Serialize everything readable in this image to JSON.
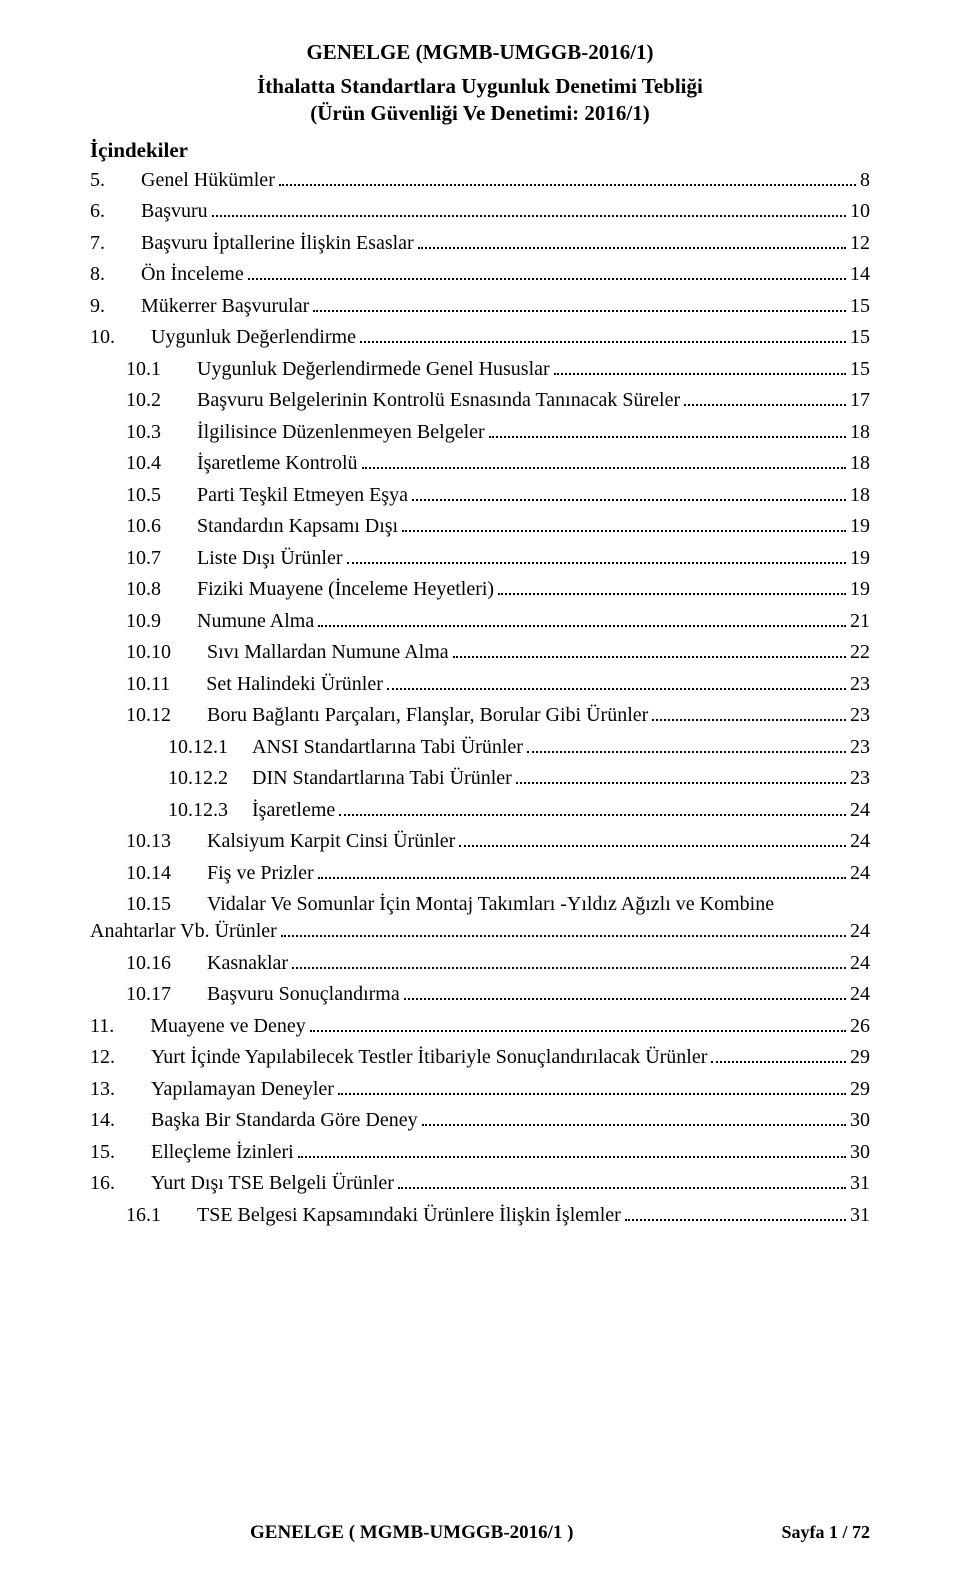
{
  "header": {
    "title1": "GENELGE (MGMB-UMGGB-2016/1)",
    "title2_line1": "İthalatta Standartlara Uygunluk Denetimi Tebliği",
    "title2_line2": "(Ürün Güvenliği Ve Denetimi: 2016/1)"
  },
  "contents_label": "İçindekiler",
  "toc": [
    {
      "num": "5.",
      "text": "Genel Hükümler",
      "page": "8",
      "indent": 0
    },
    {
      "num": "6.",
      "text": "Başvuru",
      "page": "10",
      "indent": 0
    },
    {
      "num": "7.",
      "text": "Başvuru İptallerine İlişkin Esaslar",
      "page": "12",
      "indent": 0
    },
    {
      "num": "8.",
      "text": "Ön İnceleme",
      "page": "14",
      "indent": 0
    },
    {
      "num": "9.",
      "text": "Mükerrer Başvurular",
      "page": "15",
      "indent": 0
    },
    {
      "num": "10.",
      "text": "Uygunluk Değerlendirme",
      "page": "15",
      "indent": 0
    },
    {
      "num": "10.1",
      "text": "Uygunluk Değerlendirmede Genel Hususlar",
      "page": "15",
      "indent": 1
    },
    {
      "num": "10.2",
      "text": "Başvuru Belgelerinin Kontrolü Esnasında Tanınacak Süreler",
      "page": "17",
      "indent": 1
    },
    {
      "num": "10.3",
      "text": "İlgilisince Düzenlenmeyen Belgeler",
      "page": "18",
      "indent": 1
    },
    {
      "num": "10.4",
      "text": "İşaretleme Kontrolü",
      "page": "18",
      "indent": 1
    },
    {
      "num": "10.5",
      "text": "Parti Teşkil Etmeyen Eşya",
      "page": "18",
      "indent": 1
    },
    {
      "num": "10.6",
      "text": "Standardın Kapsamı Dışı",
      "page": "19",
      "indent": 1
    },
    {
      "num": "10.7",
      "text": "Liste Dışı Ürünler",
      "page": "19",
      "indent": 1
    },
    {
      "num": "10.8",
      "text": "Fiziki Muayene (İnceleme Heyetleri)",
      "page": "19",
      "indent": 1
    },
    {
      "num": "10.9",
      "text": "Numune Alma",
      "page": "21",
      "indent": 1
    },
    {
      "num": "10.10",
      "text": "Sıvı Mallardan Numune Alma",
      "page": "22",
      "indent": 1
    },
    {
      "num": "10.11",
      "text": "Set Halindeki Ürünler",
      "page": "23",
      "indent": 1
    },
    {
      "num": "10.12",
      "text": "Boru Bağlantı Parçaları, Flanşlar, Borular Gibi Ürünler",
      "page": "23",
      "indent": 1
    },
    {
      "num": "10.12.1",
      "text": "ANSI Standartlarına Tabi Ürünler",
      "page": "23",
      "indent": 2
    },
    {
      "num": "10.12.2",
      "text": "DIN Standartlarına Tabi Ürünler",
      "page": "23",
      "indent": 2
    },
    {
      "num": "10.12.3",
      "text": "İşaretleme",
      "page": "24",
      "indent": 2
    },
    {
      "num": "10.13",
      "text": "Kalsiyum Karpit Cinsi Ürünler",
      "page": "24",
      "indent": 1
    },
    {
      "num": "10.14",
      "text": "Fiş ve Prizler",
      "page": "24",
      "indent": 1
    },
    {
      "num": "10.15",
      "text_line1": "Vidalar Ve Somunlar İçin Montaj Takımları -Yıldız Ağızlı ve Kombine",
      "text_line2": "Anahtarlar Vb. Ürünler",
      "page": "24",
      "indent": 1,
      "multiline": true
    },
    {
      "num": "10.16",
      "text": "Kasnaklar",
      "page": "24",
      "indent": 1
    },
    {
      "num": "10.17",
      "text": "Başvuru Sonuçlandırma",
      "page": "24",
      "indent": 1
    },
    {
      "num": "11.",
      "text": "Muayene ve Deney",
      "page": "26",
      "indent": 0
    },
    {
      "num": "12.",
      "text": "Yurt İçinde Yapılabilecek Testler İtibariyle Sonuçlandırılacak Ürünler",
      "page": "29",
      "indent": 0
    },
    {
      "num": "13.",
      "text": "Yapılamayan Deneyler",
      "page": "29",
      "indent": 0
    },
    {
      "num": "14.",
      "text": "Başka Bir Standarda Göre Deney",
      "page": "30",
      "indent": 0
    },
    {
      "num": "15.",
      "text": "Elleçleme İzinleri",
      "page": "30",
      "indent": 0
    },
    {
      "num": "16.",
      "text": "Yurt Dışı TSE Belgeli Ürünler",
      "page": "31",
      "indent": 0
    },
    {
      "num": "16.1",
      "text": "TSE Belgesi Kapsamındaki Ürünlere İlişkin İşlemler",
      "page": "31",
      "indent": 1
    }
  ],
  "footer": {
    "left": "GENELGE ( MGMB-UMGGB-2016/1 )",
    "right": "Sayfa 1 / 72"
  },
  "colors": {
    "text": "#000000",
    "background": "#ffffff",
    "leader": "#000000"
  }
}
